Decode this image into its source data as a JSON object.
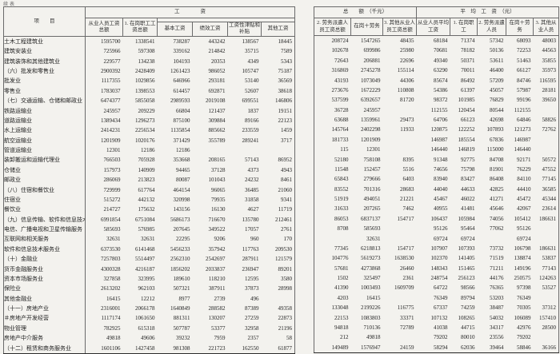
{
  "caption": "续表",
  "headers": {
    "item": "项　　目",
    "left_group": "工　　　　资",
    "right_group_amount": "总　　额　（千元）",
    "right_group_avg": "平　均　工　资　（元）",
    "c1": "从业人员工资总额",
    "c2": "1. 在岗职工工资总额",
    "c3": "基本工资",
    "c4": "绩效工资",
    "c5": "工资性津贴和补贴",
    "c6": "其他工资",
    "c7": "2. 劳务派遣人员工资总额",
    "c8": "在岗＋劳务",
    "c9": "3. 其他从业人员工资总额",
    "c10": "从业人员平均工资",
    "c11": "1. 在岗职工",
    "c12": "2. 劳务派遣人员",
    "c13": "在岗＋劳务",
    "c14": "3. 其他从业人员"
  },
  "rows": [
    {
      "item": "土木工程建筑业",
      "indent": 2,
      "values": [
        "1595700",
        "1338541",
        "738287",
        "443242",
        "138567",
        "18445",
        "208724",
        "1547265",
        "48435",
        "68184",
        "71374",
        "57342",
        "68093",
        "48003"
      ]
    },
    {
      "item": "建筑安装业",
      "indent": 2,
      "values": [
        "725966",
        "597308",
        "339162",
        "214842",
        "35715",
        "7589",
        "102678",
        "699986",
        "25980",
        "70681",
        "78182",
        "50136",
        "72253",
        "44563"
      ]
    },
    {
      "item": "建筑装饰和其他建筑业",
      "indent": 2,
      "values": [
        "229577",
        "134238",
        "104193",
        "20353",
        "4349",
        "5343",
        "72643",
        "206881",
        "22696",
        "49340",
        "50371",
        "53611",
        "51463",
        "35855"
      ]
    },
    {
      "item": "（六）批发和零售业",
      "indent": 1,
      "values": [
        "2900392",
        "2428409",
        "1261423",
        "986052",
        "105747",
        "75187",
        "316869",
        "2745278",
        "155114",
        "63290",
        "70011",
        "46400",
        "66127",
        "35973"
      ]
    },
    {
      "item": "批发业",
      "indent": 2,
      "values": [
        "1117355",
        "1029856",
        "646966",
        "293181",
        "53140",
        "36569",
        "43193",
        "1073049",
        "44306",
        "85674",
        "86492",
        "57209",
        "84746",
        "116595"
      ]
    },
    {
      "item": "零售业",
      "indent": 2,
      "values": [
        "1783037",
        "1398553",
        "614457",
        "692871",
        "52607",
        "38618",
        "273676",
        "1672229",
        "110808",
        "54386",
        "61397",
        "45057",
        "57987",
        "28181"
      ]
    },
    {
      "item": "（七）交通运输、仓储和邮政业",
      "indent": 1,
      "values": [
        "6474377",
        "5855058",
        "2989593",
        "2019108",
        "699551",
        "146806",
        "537599",
        "6392657",
        "81720",
        "98372",
        "101985",
        "76829",
        "99196",
        "39650"
      ]
    },
    {
      "item": "铁路运输业",
      "indent": 2,
      "values": [
        "245957",
        "209229",
        "66804",
        "121437",
        "1837",
        "19151",
        "36728",
        "245957",
        "",
        "112155",
        "120454",
        "80544",
        "112155",
        ""
      ]
    },
    {
      "item": "道路运输业",
      "indent": 2,
      "values": [
        "1389434",
        "1296273",
        "875100",
        "309884",
        "89166",
        "22123",
        "63688",
        "1359961",
        "29473",
        "64706",
        "66123",
        "42698",
        "64846",
        "58826"
      ]
    },
    {
      "item": "水上运输业",
      "indent": 2,
      "values": [
        "2414231",
        "2256534",
        "1135854",
        "885662",
        "233559",
        "1459",
        "145764",
        "2402298",
        "11933",
        "120875",
        "122252",
        "107893",
        "121273",
        "72762"
      ]
    },
    {
      "item": "航空运输业",
      "indent": 2,
      "values": [
        "1201909",
        "1020176",
        "371429",
        "355789",
        "289241",
        "3717",
        "181733",
        "1201909",
        "",
        "146987",
        "185554",
        "67836",
        "146987",
        ""
      ]
    },
    {
      "item": "管道运输业",
      "indent": 2,
      "values": [
        "12301",
        "12186",
        "12186",
        "",
        "",
        "",
        "115",
        "12301",
        "",
        "146440",
        "146819",
        "115000",
        "146440",
        ""
      ]
    },
    {
      "item": "装卸搬运和运输代理业",
      "indent": 2,
      "values": [
        "766503",
        "705928",
        "353668",
        "208165",
        "57143",
        "86952",
        "52180",
        "758108",
        "8395",
        "91348",
        "92775",
        "84708",
        "92171",
        "50572"
      ]
    },
    {
      "item": "仓储业",
      "indent": 2,
      "values": [
        "157973",
        "140909",
        "94465",
        "37128",
        "4373",
        "4943",
        "11548",
        "152457",
        "5516",
        "74656",
        "75798",
        "81901",
        "76229",
        "47552"
      ]
    },
    {
      "item": "邮政业",
      "indent": 2,
      "values": [
        "286069",
        "213823",
        "80087",
        "101043",
        "24232",
        "8461",
        "65843",
        "279666",
        "6403",
        "83940",
        "83427",
        "86408",
        "84110",
        "77145"
      ]
    },
    {
      "item": "（八）住宿和餐饮业",
      "indent": 1,
      "values": [
        "729999",
        "617764",
        "464154",
        "96065",
        "36485",
        "21060",
        "83552",
        "701316",
        "28683",
        "44040",
        "44633",
        "42825",
        "44410",
        "36585"
      ]
    },
    {
      "item": "住宿业",
      "indent": 2,
      "values": [
        "515272",
        "442132",
        "320998",
        "79935",
        "31858",
        "9341",
        "51919",
        "494051",
        "21221",
        "45467",
        "46022",
        "41271",
        "45472",
        "45344"
      ]
    },
    {
      "item": "餐饮业",
      "indent": 2,
      "values": [
        "214727",
        "175632",
        "143156",
        "16130",
        "4627",
        "11719",
        "31633",
        "207265",
        "7462",
        "40955",
        "41481",
        "45646",
        "42067",
        "23614"
      ]
    },
    {
      "item": "（九）信息传输、软件和信息技术服务业",
      "indent": 1,
      "values": [
        "6991854",
        "6751084",
        "5686173",
        "716670",
        "135780",
        "212461",
        "86053",
        "6837137",
        "154717",
        "106437",
        "105984",
        "74056",
        "105412",
        "186631"
      ]
    },
    {
      "item": "电信、广播电视和卫星传输服务",
      "indent": 2,
      "values": [
        "585693",
        "576985",
        "207645",
        "349522",
        "17057",
        "2761",
        "8708",
        "585693",
        "",
        "95126",
        "95464",
        "77062",
        "95126",
        ""
      ]
    },
    {
      "item": "互联网和相关服务",
      "indent": 2,
      "values": [
        "32631",
        "32631",
        "22295",
        "9206",
        "960",
        "170",
        "",
        "32631",
        "",
        "69724",
        "69724",
        "",
        "69724",
        ""
      ]
    },
    {
      "item": "软件和信息技术服务业",
      "indent": 2,
      "values": [
        "6373530",
        "6141468",
        "5456233",
        "357942",
        "117763",
        "209530",
        "77345",
        "6218813",
        "154717",
        "107907",
        "107393",
        "73732",
        "106798",
        "186631"
      ]
    },
    {
      "item": "（十）金融业",
      "indent": 1,
      "values": [
        "7257803",
        "5514497",
        "2562310",
        "2542697",
        "287911",
        "121579",
        "104776",
        "5619273",
        "1638530",
        "102370",
        "141405",
        "71519",
        "138874",
        "53837"
      ]
    },
    {
      "item": "货币金融服务业",
      "indent": 2,
      "values": [
        "4300328",
        "4216187",
        "1856202",
        "2033837",
        "236947",
        "89201",
        "57681",
        "4273868",
        "26460",
        "148343",
        "151465",
        "71211",
        "149196",
        "77143"
      ]
    },
    {
      "item": "资本市场服务业",
      "indent": 2,
      "values": [
        "327858",
        "323995",
        "189610",
        "118210",
        "12595",
        "3580",
        "1502",
        "325497",
        "2361",
        "248754",
        "256123",
        "44176",
        "250575",
        "124263"
      ]
    },
    {
      "item": "保险业",
      "indent": 2,
      "values": [
        "2613202",
        "962103",
        "507321",
        "387911",
        "37873",
        "28998",
        "41390",
        "1003493",
        "1609709",
        "64722",
        "98566",
        "76365",
        "97398",
        "53527"
      ]
    },
    {
      "item": "其他金融业",
      "indent": 2,
      "values": [
        "16415",
        "12212",
        "8977",
        "2739",
        "496",
        "",
        "4203",
        "16415",
        "",
        "76349",
        "89794",
        "53203",
        "76349",
        ""
      ]
    },
    {
      "item": "（十一）房地产业",
      "indent": 1,
      "values": [
        "2316001",
        "2066178",
        "1640849",
        "288582",
        "87389",
        "49358",
        "133048",
        "2199226",
        "116775",
        "67337",
        "74259",
        "38487",
        "70305",
        "37312"
      ]
    },
    {
      "item": "＃房地产开发经营",
      "indent": 2,
      "values": [
        "1117174",
        "1061650",
        "881311",
        "130207",
        "27259",
        "22873",
        "22153",
        "1083803",
        "33371",
        "107132",
        "108265",
        "54032",
        "106089",
        "157410"
      ]
    },
    {
      "item": "物业管理",
      "indent": 3,
      "values": [
        "782925",
        "615318",
        "507787",
        "53377",
        "32958",
        "21196",
        "94818",
        "710136",
        "72789",
        "41038",
        "44715",
        "34317",
        "42976",
        "28500"
      ]
    },
    {
      "item": "房地产中介服务",
      "indent": 3,
      "values": [
        "49818",
        "49606",
        "39232",
        "7959",
        "2357",
        "58",
        "212",
        "49818",
        "",
        "79202",
        "80010",
        "23556",
        "79202",
        ""
      ]
    },
    {
      "item": "（十二）租赁和商务服务业",
      "indent": 1,
      "values": [
        "1601106",
        "1427458",
        "981308",
        "221723",
        "162550",
        "61877",
        "149489",
        "1576947",
        "24159",
        "58294",
        "62036",
        "39464",
        "58846",
        "36166"
      ]
    }
  ]
}
